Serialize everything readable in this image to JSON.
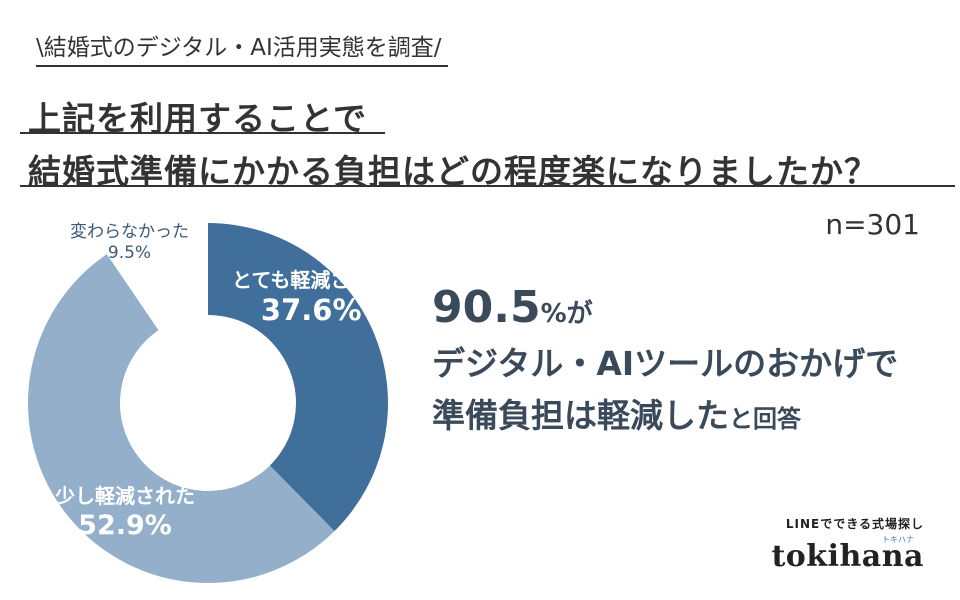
{
  "header": {
    "subtitle": "\\結婚式のデジタル・AI活用実態を調査/",
    "title_line1": "上記を利用することで",
    "title_line2": "結婚式準備にかかる負担はどの程度楽になりましたか？"
  },
  "sample_size": "n=301",
  "chart_data": {
    "type": "pie",
    "donut": true,
    "categories": [
      "とても軽減された",
      "少し軽減された",
      "変わらなかった"
    ],
    "values": [
      37.6,
      52.9,
      9.5
    ],
    "labels": [
      {
        "cat": "とても軽減された",
        "pct": "37.6%"
      },
      {
        "cat": "少し軽減された",
        "pct": "52.9%"
      },
      {
        "cat": "変わらなかった",
        "pct": "9.5%"
      }
    ],
    "colors": [
      "#3f6f9a",
      "#93afc9",
      "#ffffff"
    ]
  },
  "callout": {
    "value": "90.5",
    "unit": "%",
    "particle": "が",
    "line2": "デジタル・AIツールのおかげで",
    "line3_main": "準備負担は軽減した",
    "line3_small": "と回答"
  },
  "brand": {
    "tagline": "LINEでできる式場探し",
    "kana": "トキハナ",
    "name": "tokihana"
  }
}
